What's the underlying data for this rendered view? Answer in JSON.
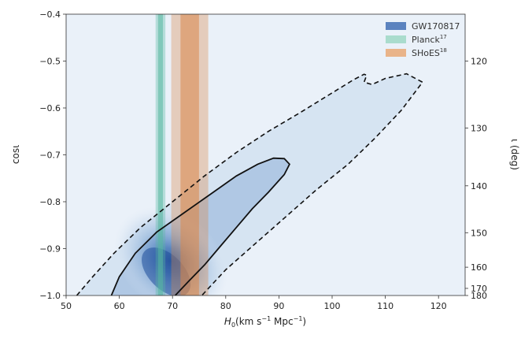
{
  "chart_data": {
    "type": "contour",
    "xlabel": "H",
    "xlabel_sub": "0",
    "xlabel_units_pre": "(km s",
    "xlabel_units_exp1": "−1",
    "xlabel_units_mid": " Mpc",
    "xlabel_units_exp2": "−1",
    "xlabel_units_post": ")",
    "ylabel_left": "cosι",
    "ylabel_right": "ι (deg)",
    "xlim": [
      50,
      125
    ],
    "ylim": [
      -1.0,
      -0.4
    ],
    "xticks": [
      50,
      60,
      70,
      80,
      90,
      100,
      110,
      120
    ],
    "yticks_left": [
      -1.0,
      -0.9,
      -0.8,
      -0.7,
      -0.6,
      -0.5,
      -0.4
    ],
    "ytick_labels_left": [
      "−1.0",
      "−0.9",
      "−0.8",
      "−0.7",
      "−0.6",
      "−0.5",
      "−0.4"
    ],
    "yticks_right_deg": [
      120,
      130,
      140,
      150,
      160,
      170,
      180
    ],
    "colors": {
      "gw": "#4c72b0",
      "planck": "#55b7a0",
      "shoes": "#d9864a",
      "contour_line": "#111111",
      "background": "#eaf1f9"
    },
    "bands": [
      {
        "name": "Planck",
        "center": 67.74,
        "sigma1": 0.46,
        "sigma2": 0.92
      },
      {
        "name": "SHoES",
        "center": 73.24,
        "sigma1": 1.74,
        "sigma2": 3.48
      }
    ],
    "gw_peak": {
      "h0": 68.5,
      "cos": -0.96
    },
    "contour_68": [
      [
        58.5,
        -1.0
      ],
      [
        60,
        -0.96
      ],
      [
        63,
        -0.91
      ],
      [
        67,
        -0.865
      ],
      [
        72,
        -0.825
      ],
      [
        77,
        -0.785
      ],
      [
        82,
        -0.745
      ],
      [
        86,
        -0.72
      ],
      [
        89,
        -0.707
      ],
      [
        91,
        -0.708
      ],
      [
        92,
        -0.72
      ],
      [
        91,
        -0.742
      ],
      [
        88,
        -0.78
      ],
      [
        85,
        -0.815
      ],
      [
        82,
        -0.855
      ],
      [
        79,
        -0.895
      ],
      [
        76,
        -0.935
      ],
      [
        73,
        -0.97
      ],
      [
        70.5,
        -1.0
      ]
    ],
    "contour_95": [
      [
        52,
        -1.0
      ],
      [
        55,
        -0.96
      ],
      [
        59,
        -0.91
      ],
      [
        64,
        -0.855
      ],
      [
        70,
        -0.8
      ],
      [
        76,
        -0.745
      ],
      [
        82,
        -0.695
      ],
      [
        88,
        -0.65
      ],
      [
        94,
        -0.61
      ],
      [
        99,
        -0.575
      ],
      [
        104,
        -0.54
      ],
      [
        106,
        -0.528
      ],
      [
        106.5,
        -0.53
      ],
      [
        106,
        -0.545
      ],
      [
        107.5,
        -0.55
      ],
      [
        110,
        -0.537
      ],
      [
        114,
        -0.527
      ],
      [
        117,
        -0.545
      ],
      [
        113,
        -0.605
      ],
      [
        108,
        -0.665
      ],
      [
        103,
        -0.72
      ],
      [
        97,
        -0.775
      ],
      [
        91,
        -0.835
      ],
      [
        85,
        -0.895
      ],
      [
        80,
        -0.945
      ],
      [
        75.5,
        -1.0
      ]
    ],
    "legend": [
      {
        "label": "GW170817",
        "sup": "",
        "color": "#5b83bf"
      },
      {
        "label": "Planck",
        "sup": "17",
        "color": "#aadccd"
      },
      {
        "label": "SHoES",
        "sup": "18",
        "color": "#e9b48a"
      }
    ],
    "legend_position": "top-right"
  }
}
